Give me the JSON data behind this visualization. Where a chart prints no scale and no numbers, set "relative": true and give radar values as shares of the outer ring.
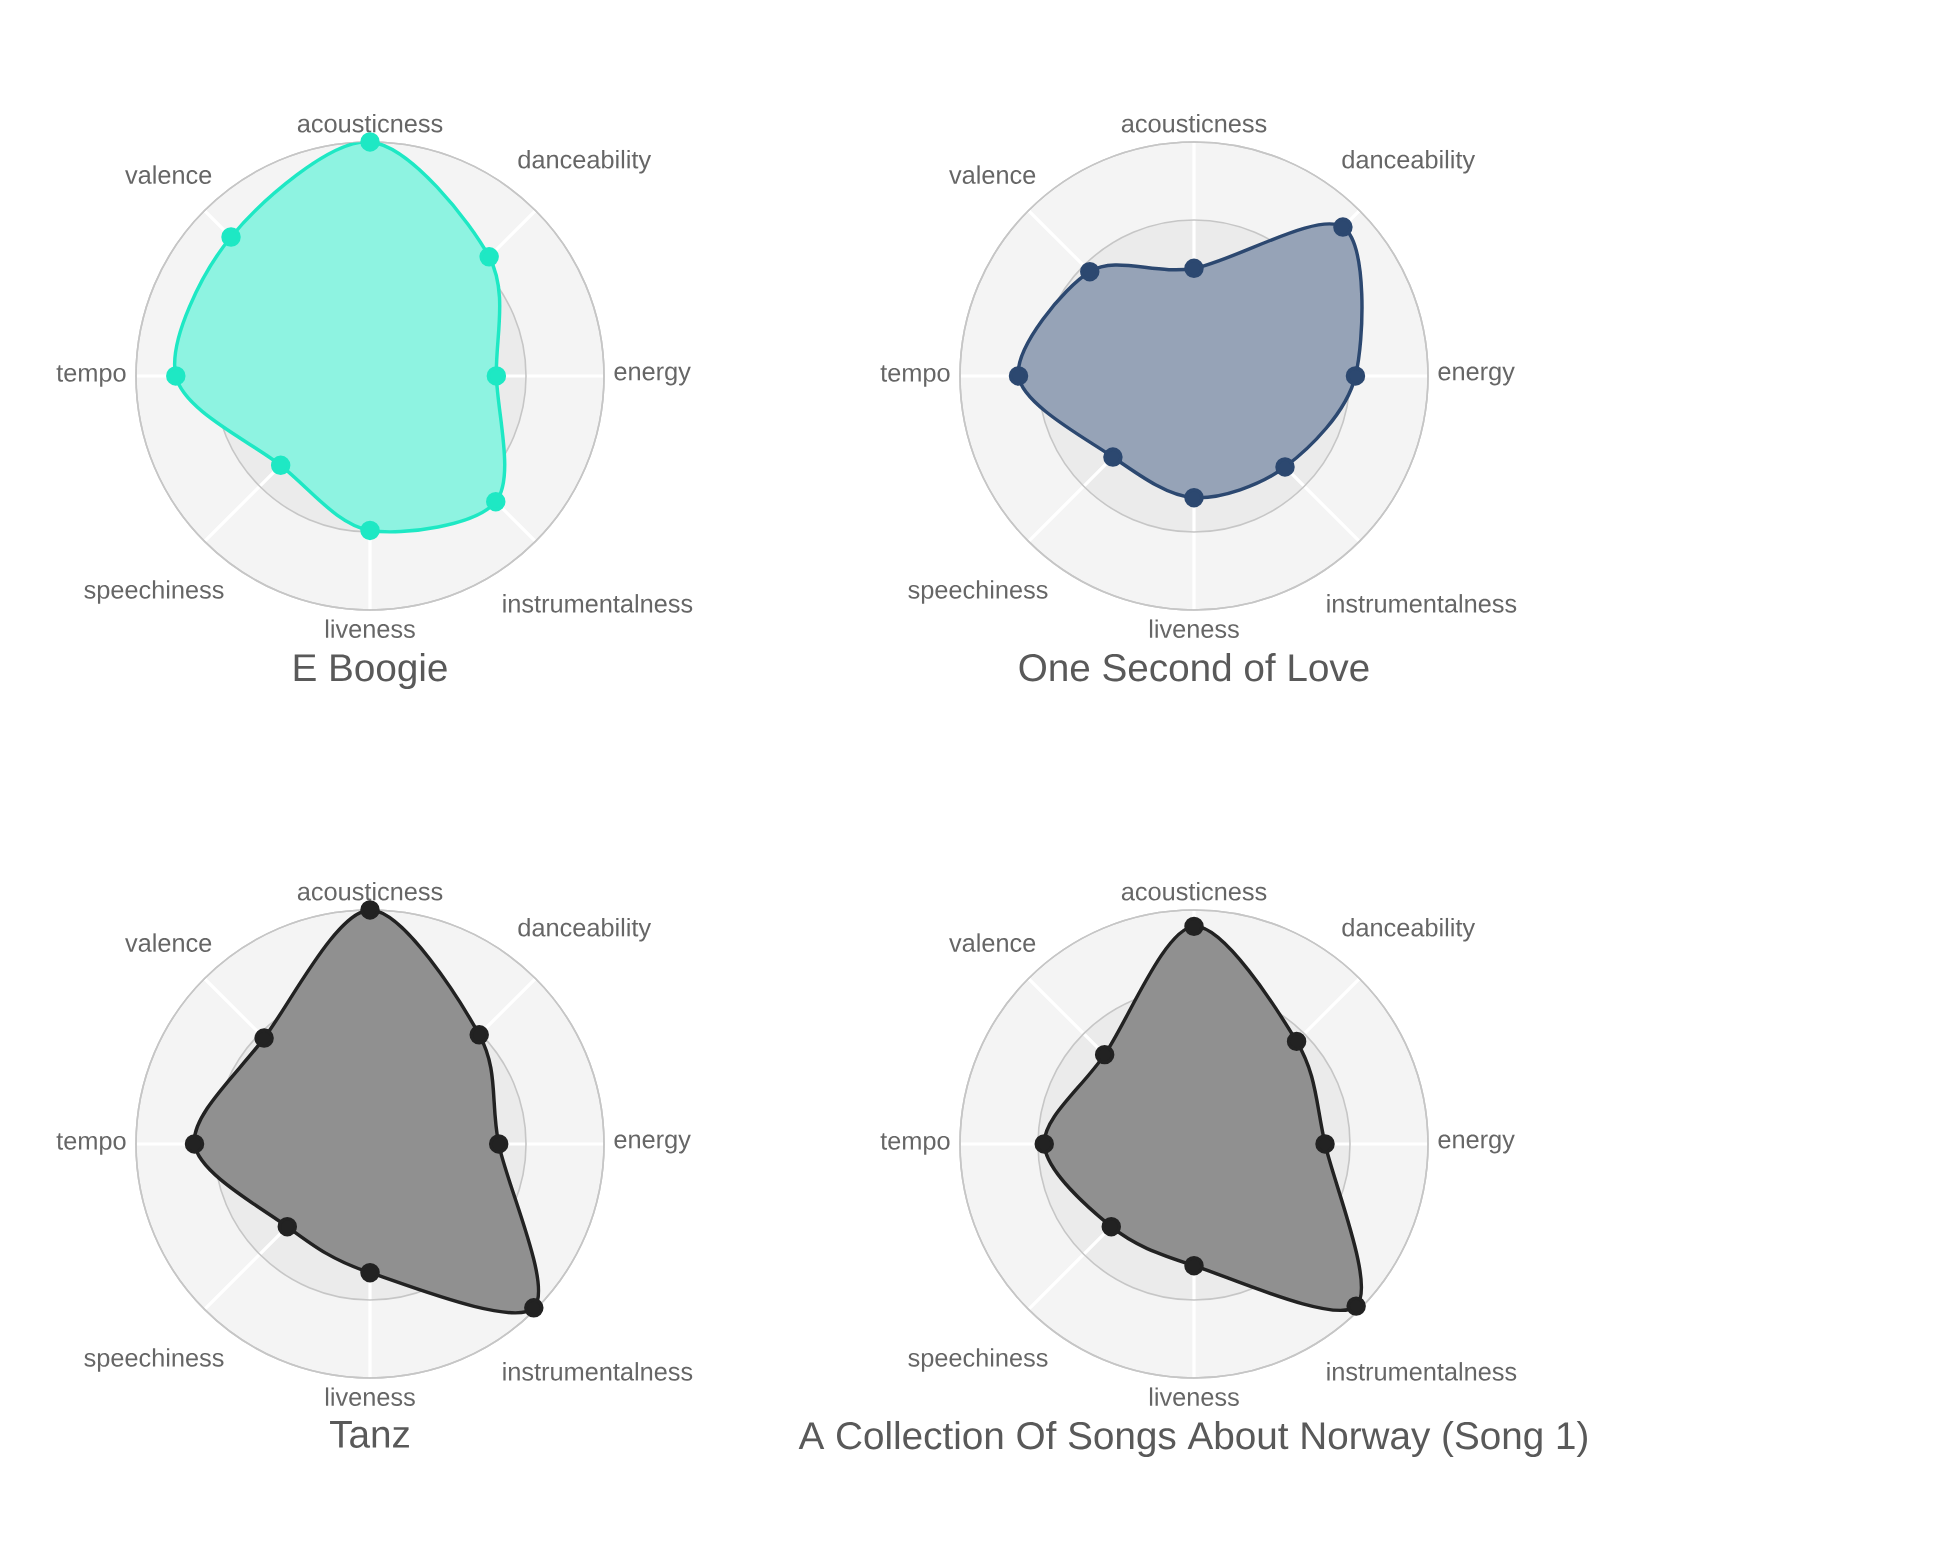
{
  "chart_data": [
    {
      "type": "radar",
      "title": "E Boogie",
      "relative": true,
      "marker": "circle",
      "categories": [
        "acousticness",
        "danceability",
        "energy",
        "instrumentalness",
        "liveness",
        "speechiness",
        "tempo",
        "valence"
      ],
      "series": [
        {
          "color": "#1ee8c4",
          "values": [
            1.0,
            0.72,
            0.54,
            0.76,
            0.66,
            0.54,
            0.83,
            0.84
          ]
        }
      ]
    },
    {
      "type": "radar",
      "title": "One Second of Love",
      "relative": true,
      "marker": "circle",
      "categories": [
        "acousticness",
        "danceability",
        "energy",
        "instrumentalness",
        "liveness",
        "speechiness",
        "tempo",
        "valence"
      ],
      "series": [
        {
          "color": "#2c4870",
          "values": [
            0.46,
            0.9,
            0.69,
            0.55,
            0.52,
            0.49,
            0.75,
            0.63
          ]
        }
      ]
    },
    {
      "type": "radar",
      "title": "Tanz",
      "relative": true,
      "marker": "circle",
      "categories": [
        "acousticness",
        "danceability",
        "energy",
        "instrumentalness",
        "liveness",
        "speechiness",
        "tempo",
        "valence"
      ],
      "series": [
        {
          "color": "#222222",
          "values": [
            1.0,
            0.66,
            0.55,
            0.99,
            0.55,
            0.5,
            0.75,
            0.64
          ]
        }
      ]
    },
    {
      "type": "radar",
      "title": "A Collection Of Songs About Norway (Song 1)",
      "relative": true,
      "marker": "circle",
      "categories": [
        "acousticness",
        "danceability",
        "energy",
        "instrumentalness",
        "liveness",
        "speechiness",
        "tempo",
        "valence"
      ],
      "series": [
        {
          "color": "#222222",
          "values": [
            0.93,
            0.62,
            0.56,
            0.98,
            0.52,
            0.5,
            0.64,
            0.54
          ]
        }
      ]
    }
  ]
}
